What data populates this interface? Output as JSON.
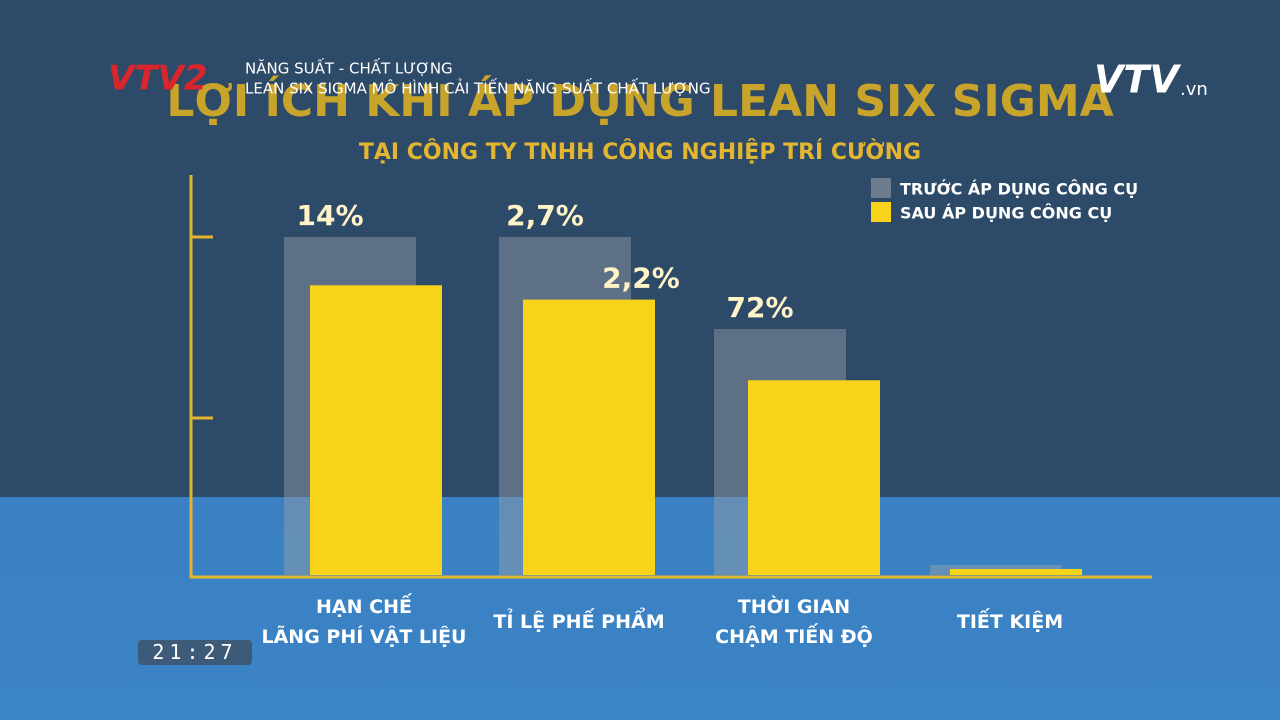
{
  "broadcast": {
    "channel": "VTV2",
    "program": "NĂNG SUẤT - CHẤT LƯỢNG",
    "episode": "LEAN SIX SIGMA  MÔ HÌNH CẢI TIẾN NĂNG SUẤT CHẤT LƯỢNG",
    "watermark": "VTV",
    "watermark_suffix": ".vn",
    "clock": "21:27"
  },
  "chart_data": {
    "type": "bar",
    "title": "LỢI ÍCH KHI ÁP DỤNG LEAN SIX SIGMA",
    "subtitle": "TẠI CÔNG TY TNHH CÔNG NGHIỆP TRÍ CƯỜNG",
    "categories": [
      "HẠN CHẾ\nLÃNG PHÍ VẬT LIỆU",
      "TỈ LỆ PHẾ PHẨM",
      "THỜI GIAN\nCHẬM TIẾN ĐỘ",
      "TIẾT KIỆM"
    ],
    "series": [
      {
        "name": "TRƯỚC ÁP DỤNG CÔNG CỤ",
        "color": "#9aa0a8",
        "values": [
          14,
          2.7,
          72,
          0
        ],
        "value_labels": [
          "14%",
          "2,7%",
          "72%",
          null
        ]
      },
      {
        "name": "SAU ÁP DỤNG CÔNG CỤ",
        "color": "#f7d31a",
        "values": [
          12,
          2.2,
          57,
          0
        ],
        "value_labels": [
          null,
          "2,2%",
          null,
          null
        ]
      }
    ]
  }
}
